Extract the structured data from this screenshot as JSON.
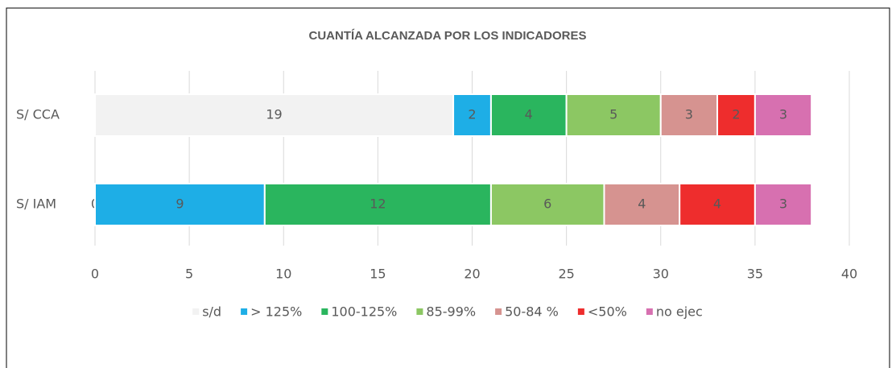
{
  "chart_data": {
    "type": "stacked_barh",
    "title": "CUANTÍA ALCANZADA POR LOS INDICADORES",
    "categories": [
      "S/ CCA",
      "S/ IAM"
    ],
    "series": [
      {
        "name": "s/d",
        "color": "#f2f2f2",
        "values": [
          19,
          0
        ]
      },
      {
        "name": "> 125%",
        "color": "#1eaee6",
        "values": [
          2,
          9
        ]
      },
      {
        "name": "100-125%",
        "color": "#2ab55e",
        "values": [
          4,
          12
        ]
      },
      {
        "name": "85-99%",
        "color": "#8cc763",
        "values": [
          5,
          6
        ]
      },
      {
        "name": "50-84 %",
        "color": "#d69390",
        "values": [
          3,
          4
        ]
      },
      {
        "name": "<50%",
        "color": "#ee2d2d",
        "values": [
          2,
          4
        ]
      },
      {
        "name": "no ejec",
        "color": "#d770b0",
        "values": [
          3,
          3
        ]
      }
    ],
    "xlim": [
      0,
      40
    ],
    "xticks": [
      0,
      5,
      10,
      15,
      20,
      25,
      30,
      35,
      40
    ],
    "grid": true,
    "legend": "bottom"
  }
}
